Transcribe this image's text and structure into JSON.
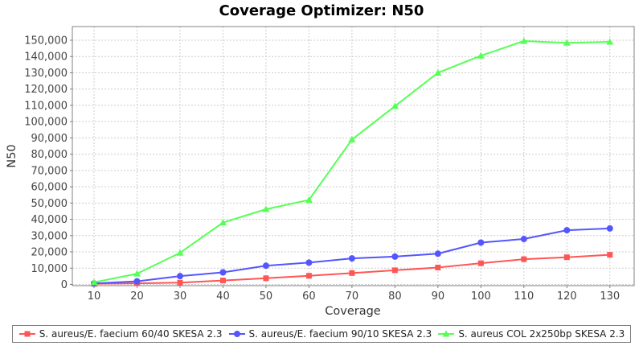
{
  "title": "Coverage Optimizer: N50",
  "chart_data": {
    "type": "line",
    "title": "Coverage Optimizer: N50",
    "xlabel": "Coverage",
    "ylabel": "N50",
    "x": [
      10,
      20,
      30,
      40,
      50,
      60,
      70,
      80,
      90,
      100,
      110,
      120,
      130
    ],
    "series": [
      {
        "name": "S. aureus/E. faecium 60/40 SKESA 2.3",
        "color": "#FF5555",
        "marker": "square",
        "values": [
          400,
          700,
          1100,
          2400,
          3800,
          5300,
          7000,
          8700,
          10400,
          13000,
          15500,
          16700,
          18200
        ]
      },
      {
        "name": "S. aureus/E. faecium 90/10 SKESA 2.3",
        "color": "#5555FF",
        "marker": "circle",
        "values": [
          600,
          1900,
          5100,
          7400,
          11500,
          13400,
          16000,
          17100,
          18900,
          25700,
          27900,
          33300,
          34400
        ]
      },
      {
        "name": "S. aureus COL 2x250bp SKESA 2.3",
        "color": "#55FF55",
        "marker": "triangle",
        "values": [
          1300,
          6600,
          19400,
          38000,
          46200,
          51900,
          89000,
          109500,
          130000,
          140500,
          149500,
          148400,
          149000
        ]
      }
    ],
    "x_ticks": [
      10,
      20,
      30,
      40,
      50,
      60,
      70,
      80,
      90,
      100,
      110,
      120,
      130
    ],
    "y_ticks": [
      0,
      10000,
      20000,
      30000,
      40000,
      50000,
      60000,
      70000,
      80000,
      90000,
      100000,
      110000,
      120000,
      130000,
      140000,
      150000
    ],
    "xlim": [
      4.95,
      135.65
    ],
    "ylim": [
      -750,
      158400
    ],
    "grid": true,
    "legend_position": "bottom"
  },
  "colors": {
    "grid": "#cccccc",
    "axis": "#808080",
    "tick_label": "#444444",
    "axis_title": "#333333",
    "title": "#000000",
    "legend_border": "#808080",
    "background": "#ffffff"
  }
}
